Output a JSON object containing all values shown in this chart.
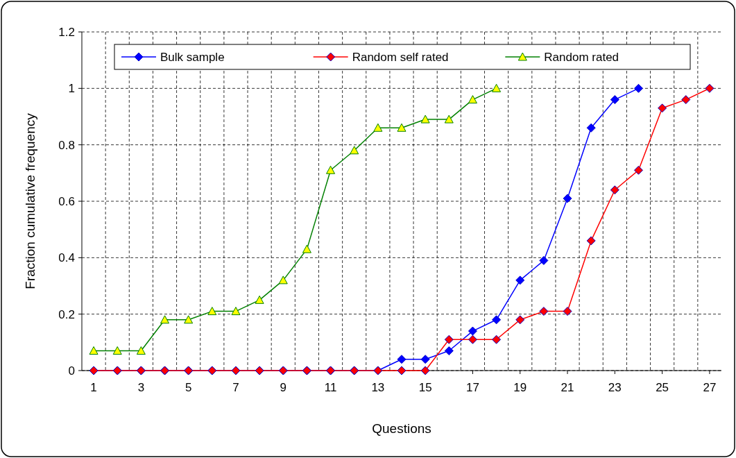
{
  "chart_data": {
    "type": "line",
    "xlabel": "Questions",
    "ylabel": "Fraction cumulative frequency",
    "x": [
      1,
      2,
      3,
      4,
      5,
      6,
      7,
      8,
      9,
      10,
      11,
      12,
      13,
      14,
      15,
      16,
      17,
      18,
      19,
      20,
      21,
      22,
      23,
      24,
      25,
      26,
      27
    ],
    "xlim": [
      0.5,
      27.5
    ],
    "xticks": [
      1,
      3,
      5,
      7,
      9,
      11,
      13,
      15,
      17,
      19,
      21,
      23,
      25,
      27
    ],
    "ylim": [
      0,
      1.2
    ],
    "yticks": [
      0,
      0.2,
      0.4,
      0.6,
      0.8,
      1,
      1.2
    ],
    "grid": true,
    "legend": "top",
    "series": [
      {
        "name": "Bulk sample",
        "color": "#0000ff",
        "marker": "diamond",
        "values": [
          0,
          0,
          0,
          0,
          0,
          0,
          0,
          0,
          0,
          0,
          0,
          0,
          0,
          0.04,
          0.04,
          0.07,
          0.14,
          0.18,
          0.32,
          0.39,
          0.61,
          0.86,
          0.96,
          1,
          null,
          null,
          null
        ]
      },
      {
        "name": "Random self rated",
        "color": "#ff0000",
        "marker": "diamond",
        "values": [
          0,
          0,
          0,
          0,
          0,
          0,
          0,
          0,
          0,
          0,
          0,
          0,
          0,
          0,
          0,
          0.11,
          0.11,
          0.11,
          0.18,
          0.21,
          0.21,
          0.46,
          0.64,
          0.71,
          0.93,
          0.96,
          1
        ]
      },
      {
        "name": "Random rated",
        "color": "#008000",
        "marker": "triangle",
        "values": [
          0.07,
          0.07,
          0.07,
          0.18,
          0.18,
          0.21,
          0.21,
          0.25,
          0.32,
          0.43,
          0.71,
          0.78,
          0.86,
          0.86,
          0.89,
          0.89,
          0.96,
          1,
          null,
          null,
          null,
          null,
          null,
          null,
          null,
          null,
          null
        ]
      }
    ]
  }
}
